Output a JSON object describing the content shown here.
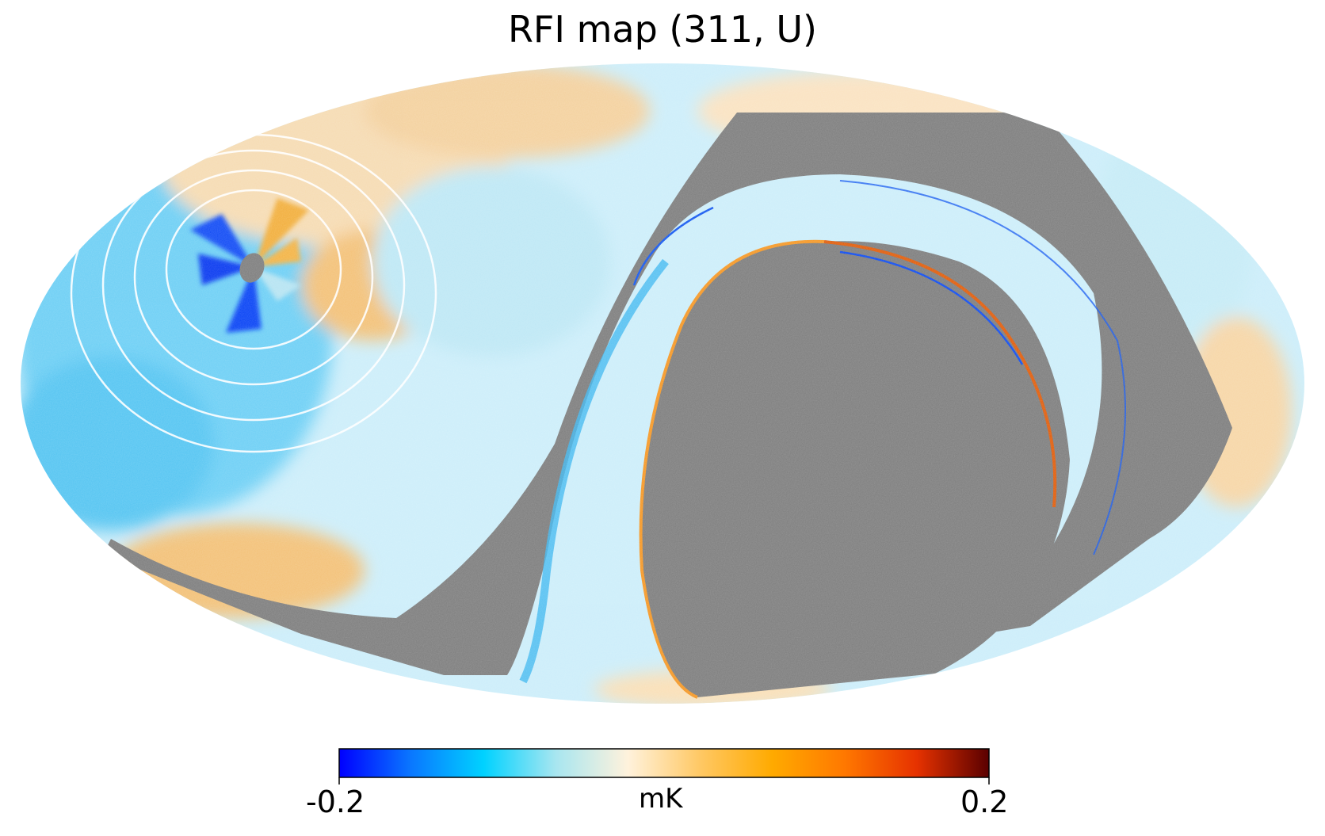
{
  "title": "RFI map (311, U)",
  "colorbar": {
    "min_label": "-0.2",
    "max_label": "0.2",
    "unit": "mK",
    "min": -0.2,
    "max": 0.2,
    "colormap_stops": [
      "#0000ff",
      "#0a78ff",
      "#00d2ff",
      "#a8e6f0",
      "#fff2dc",
      "#ffc864",
      "#ffaa00",
      "#ff7800",
      "#e63200",
      "#5a0000"
    ]
  },
  "mask_color": "#808080",
  "projection": "mollweide"
}
